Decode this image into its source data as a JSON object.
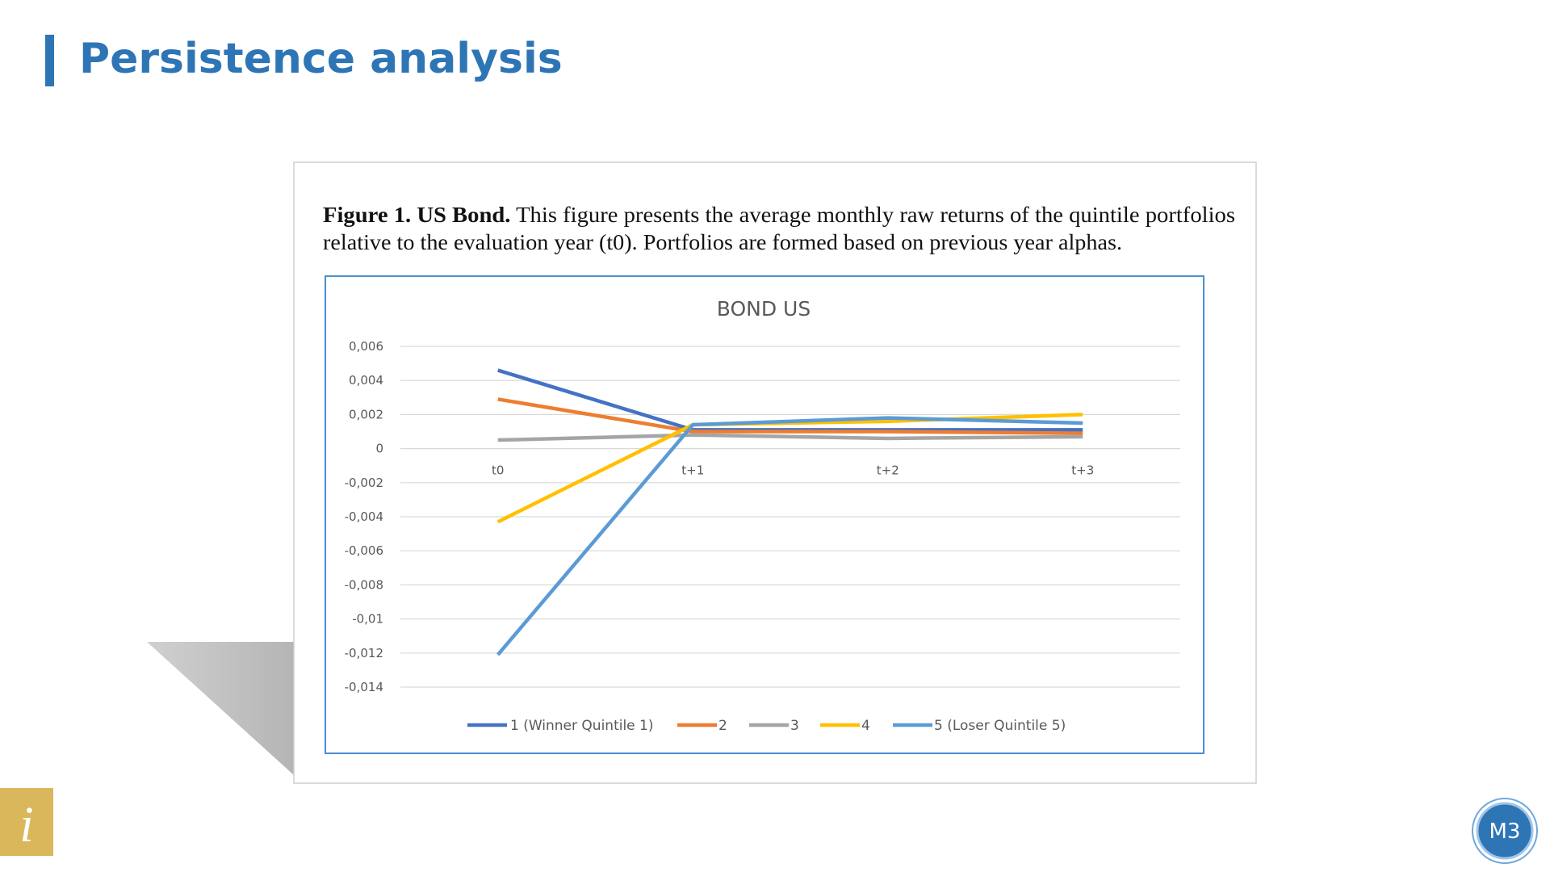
{
  "slide_title": "Persistence analysis",
  "figure": {
    "caption_bold": "Figure 1. US Bond.",
    "caption_line1": "This figure presents the average monthly raw returns of the quintile portfolios",
    "caption_line2": "relative to the evaluation year (t0). Portfolios are formed based on previous year alphas."
  },
  "chart_data": {
    "type": "line",
    "title": "BOND US",
    "categories": [
      "t0",
      "t+1",
      "t+2",
      "t+3"
    ],
    "series": [
      {
        "name": "1 (Winner Quintile 1)",
        "color": "#4472c4",
        "values": [
          0.0046,
          0.0011,
          0.0011,
          0.0011
        ]
      },
      {
        "name": "2",
        "color": "#ed7d31",
        "values": [
          0.0029,
          0.001,
          0.001,
          0.0009
        ]
      },
      {
        "name": "3",
        "color": "#a5a5a5",
        "values": [
          0.0005,
          0.0008,
          0.0006,
          0.0007
        ]
      },
      {
        "name": "4",
        "color": "#ffc000",
        "values": [
          -0.0043,
          0.0014,
          0.0016,
          0.002
        ]
      },
      {
        "name": "5 (Loser Quintile 5)",
        "color": "#5b9bd5",
        "values": [
          -0.0121,
          0.0014,
          0.0018,
          0.0015
        ]
      }
    ],
    "ylim": [
      -0.014,
      0.006
    ],
    "yticks": [
      {
        "value": 0.006,
        "label": "0,006"
      },
      {
        "value": 0.004,
        "label": "0,004"
      },
      {
        "value": 0.002,
        "label": "0,002"
      },
      0,
      {
        "value": -0.002,
        "label": "-0,002"
      },
      {
        "value": -0.004,
        "label": "-0,004"
      },
      {
        "value": -0.006,
        "label": "-0,006"
      },
      {
        "value": -0.008,
        "label": "-0,008"
      },
      {
        "value": -0.01,
        "label": "-0,01"
      },
      {
        "value": -0.012,
        "label": "-0,012"
      },
      {
        "value": -0.014,
        "label": "-0,014"
      }
    ],
    "grid": true,
    "legend": "bottom"
  },
  "info_icon": "i",
  "badge": "M3"
}
